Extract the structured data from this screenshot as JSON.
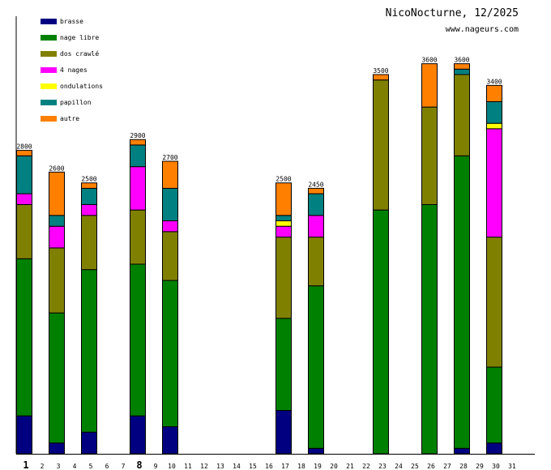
{
  "header": {
    "title": "NicoNocturne, 12/2025",
    "subtitle": "www.nageurs.com"
  },
  "chart_data": {
    "type": "bar",
    "stacked": true,
    "title": "NicoNocturne, 12/2025",
    "subtitle": "www.nageurs.com",
    "xlabel": "",
    "ylabel": "",
    "ylim": [
      0,
      4000
    ],
    "grid": false,
    "legend_position": "top-left",
    "categories": [
      "1",
      "2",
      "3",
      "4",
      "5",
      "6",
      "7",
      "8",
      "9",
      "10",
      "11",
      "12",
      "13",
      "14",
      "15",
      "16",
      "17",
      "18",
      "19",
      "20",
      "21",
      "22",
      "23",
      "24",
      "25",
      "26",
      "27",
      "28",
      "29",
      "30",
      "31"
    ],
    "bold_categories": [
      "1",
      "8"
    ],
    "series": [
      {
        "name": "brasse",
        "color": "#000080",
        "values": [
          350,
          0,
          100,
          0,
          200,
          0,
          0,
          350,
          0,
          250,
          0,
          0,
          0,
          0,
          0,
          0,
          400,
          0,
          50,
          0,
          0,
          0,
          0,
          0,
          0,
          0,
          0,
          50,
          0,
          100,
          0
        ]
      },
      {
        "name": "nage libre",
        "color": "#008000",
        "values": [
          1450,
          0,
          1200,
          0,
          1500,
          0,
          0,
          1400,
          0,
          1350,
          0,
          0,
          0,
          0,
          0,
          0,
          850,
          0,
          1500,
          0,
          0,
          0,
          2250,
          0,
          0,
          2300,
          0,
          2700,
          0,
          700,
          0
        ]
      },
      {
        "name": "dos crawlé",
        "color": "#808000",
        "values": [
          500,
          0,
          600,
          0,
          500,
          0,
          0,
          500,
          0,
          450,
          0,
          0,
          0,
          0,
          0,
          0,
          750,
          0,
          450,
          0,
          0,
          0,
          1200,
          0,
          0,
          900,
          0,
          750,
          0,
          1200,
          0
        ]
      },
      {
        "name": "4 nages",
        "color": "#ff00ff",
        "values": [
          100,
          0,
          200,
          0,
          100,
          0,
          0,
          400,
          0,
          100,
          0,
          0,
          0,
          0,
          0,
          0,
          100,
          0,
          200,
          0,
          0,
          0,
          0,
          0,
          0,
          0,
          0,
          0,
          0,
          1000,
          0
        ]
      },
      {
        "name": "ondulations",
        "color": "#ffff00",
        "values": [
          0,
          0,
          0,
          0,
          0,
          0,
          0,
          0,
          0,
          0,
          0,
          0,
          0,
          0,
          0,
          0,
          50,
          0,
          0,
          0,
          0,
          0,
          0,
          0,
          0,
          0,
          0,
          0,
          0,
          50,
          0
        ]
      },
      {
        "name": "papillon",
        "color": "#008080",
        "values": [
          350,
          0,
          100,
          0,
          150,
          0,
          0,
          200,
          0,
          300,
          0,
          0,
          0,
          0,
          0,
          0,
          50,
          0,
          200,
          0,
          0,
          0,
          0,
          0,
          0,
          0,
          0,
          50,
          0,
          200,
          0
        ]
      },
      {
        "name": "autre",
        "color": "#ff8000",
        "values": [
          50,
          0,
          400,
          0,
          50,
          0,
          0,
          50,
          0,
          250,
          0,
          0,
          0,
          0,
          0,
          0,
          300,
          0,
          50,
          0,
          0,
          0,
          50,
          0,
          0,
          400,
          0,
          50,
          0,
          150,
          0
        ]
      }
    ],
    "totals": {
      "1": "2800",
      "3": "2600",
      "5": "2500",
      "8": "2900",
      "10": "2700",
      "17": "2500",
      "19": "2450",
      "23": "3500",
      "26": "3600",
      "28": "3600",
      "30": "3400"
    }
  }
}
